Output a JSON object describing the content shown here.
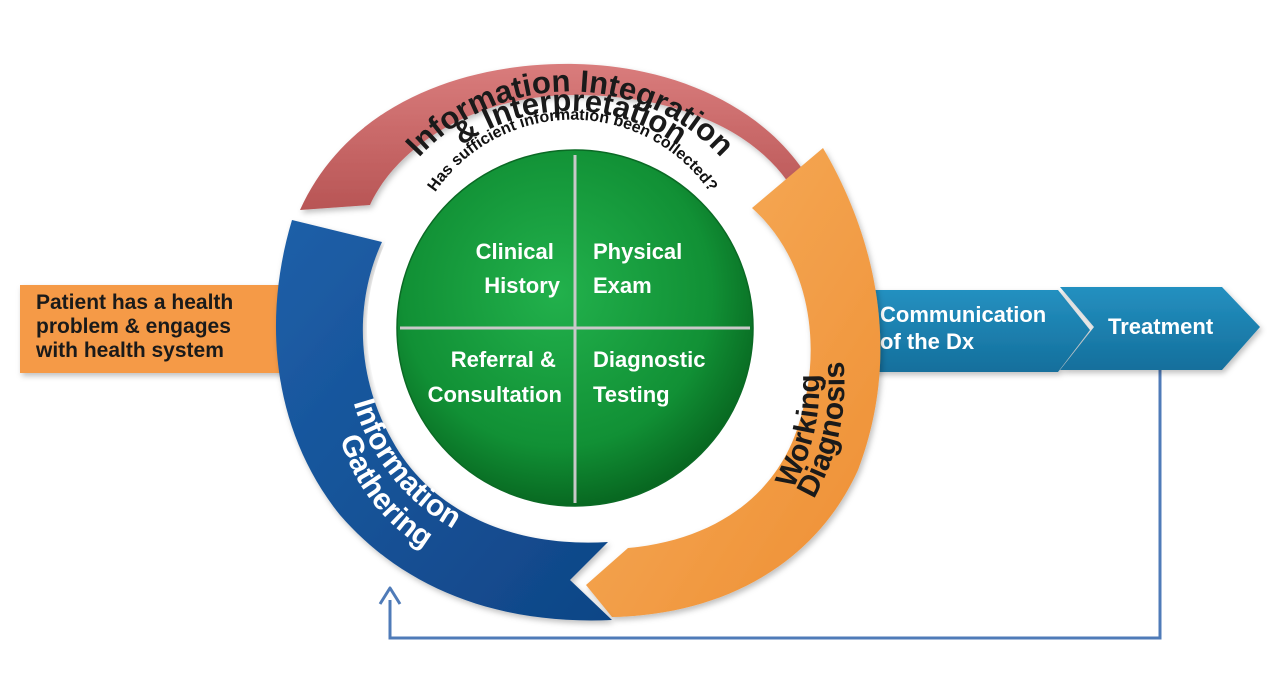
{
  "diagram": {
    "input_arrow": {
      "lines": [
        "Patient has a health",
        "problem & engages",
        "with health system"
      ],
      "color": "#F59A46"
    },
    "arcs": {
      "integration": {
        "lines": [
          "Information Integration",
          "& Interpretation"
        ],
        "color": "#CC6666"
      },
      "working_diagnosis": {
        "lines": [
          "Working",
          "Diagnosis"
        ],
        "color": "#F5A04C"
      },
      "gathering": {
        "lines": [
          "Information",
          "Gathering"
        ],
        "color": "#17549A"
      }
    },
    "question": "Has sufficient information been collected?",
    "quadrants": {
      "top_left": [
        "Clinical",
        "History"
      ],
      "top_right": [
        "Physical",
        "Exam"
      ],
      "bottom_left": [
        "Referral &",
        "Consultation"
      ],
      "bottom_right": [
        "Diagnostic",
        "Testing"
      ],
      "color": "#1E9C3C"
    },
    "chevrons": {
      "communication": [
        "Communication",
        "of the Dx"
      ],
      "treatment": [
        "Treatment"
      ],
      "color": "#1A7FAE"
    },
    "feedback_line_color": "#4F7BB8"
  }
}
